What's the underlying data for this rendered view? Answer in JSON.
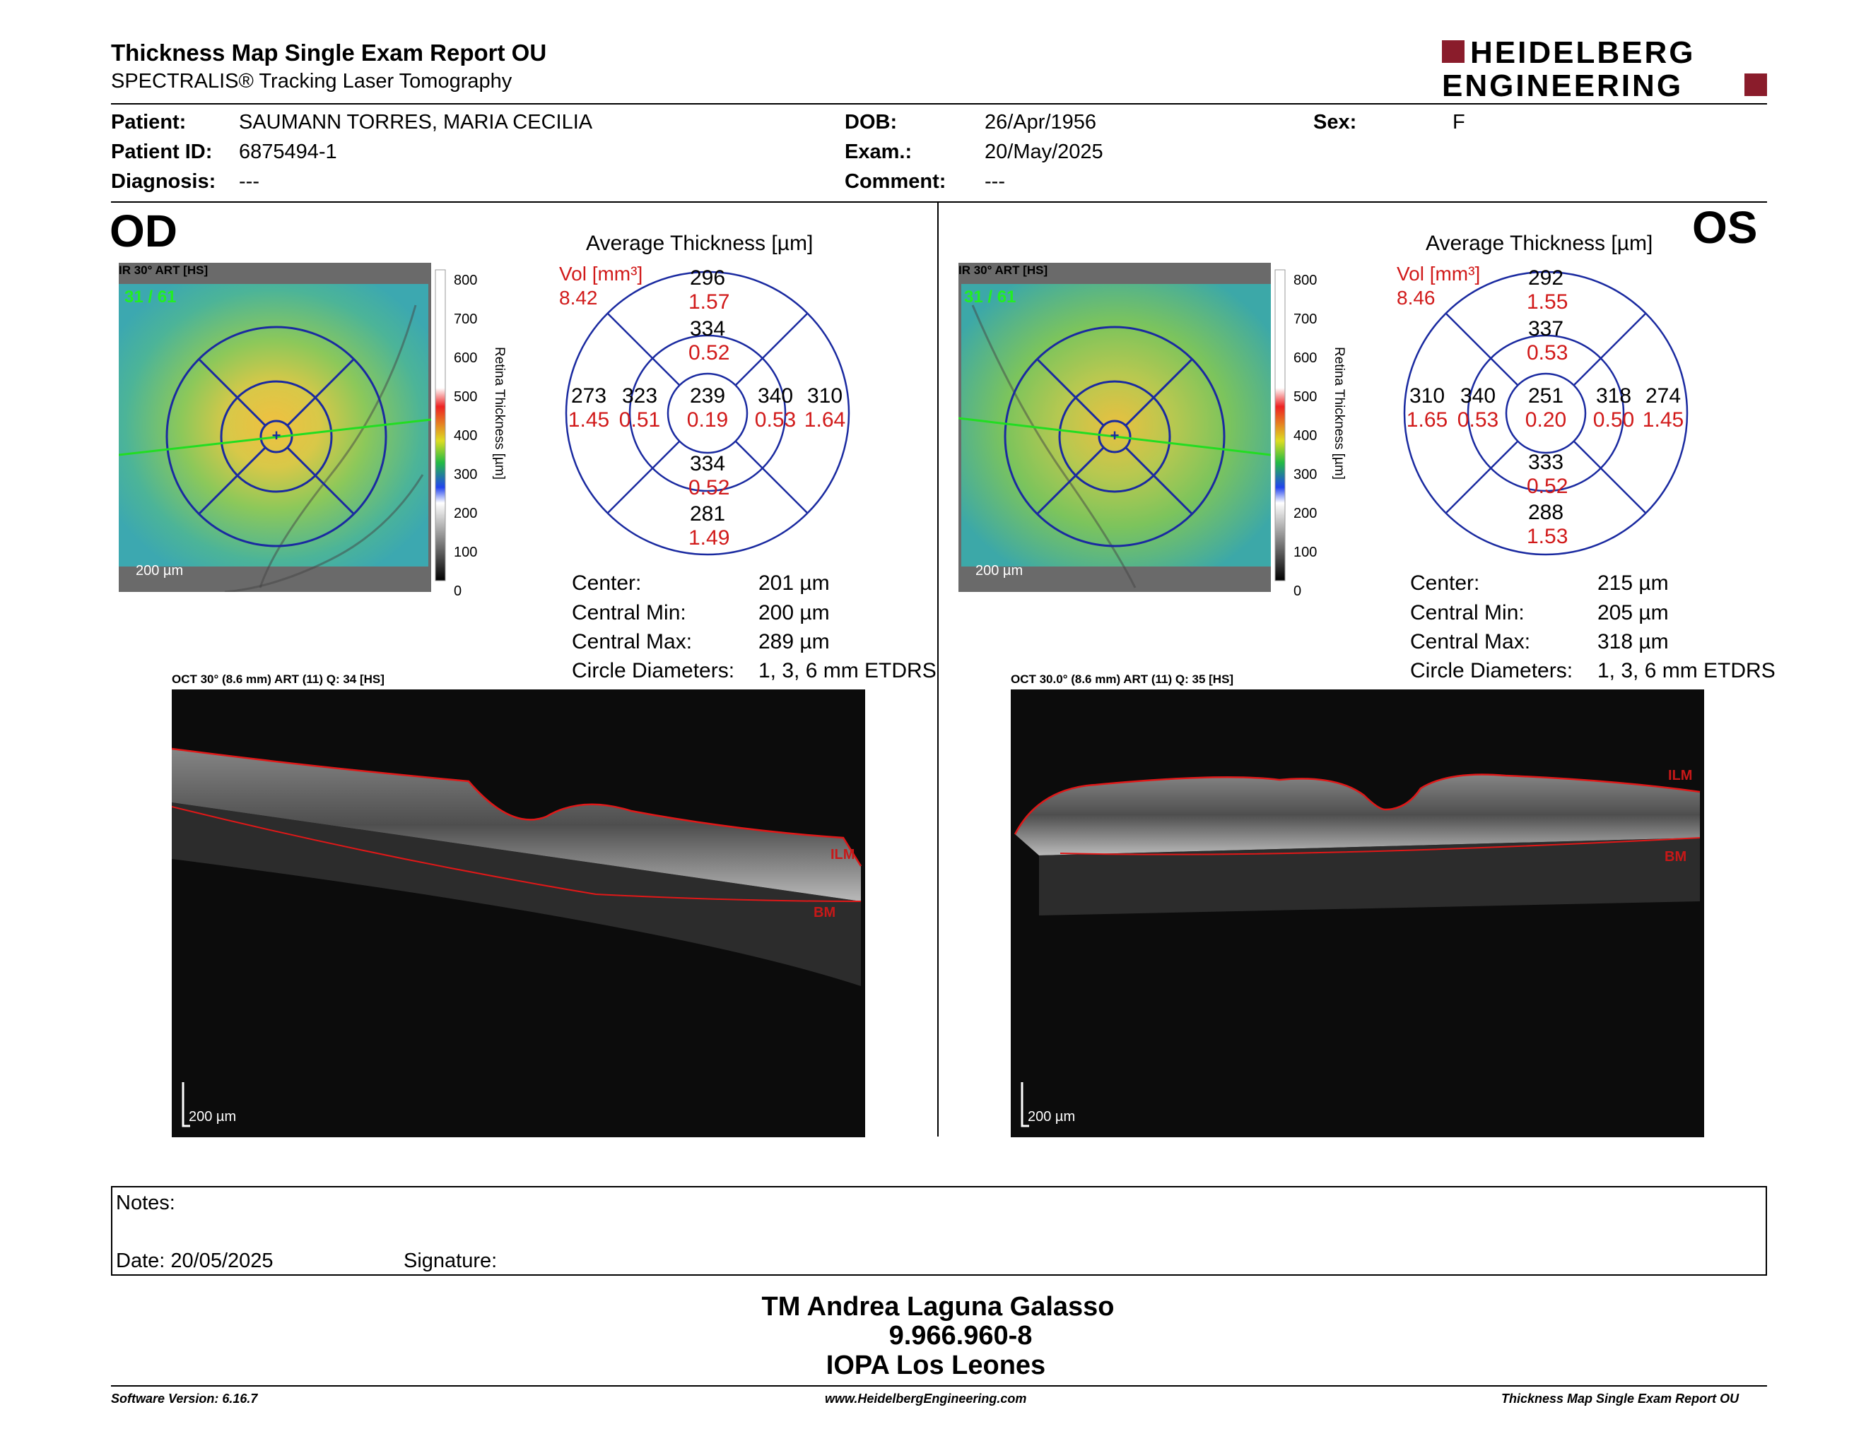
{
  "header": {
    "title": "Thickness Map Single Exam Report OU",
    "subtitle": "SPECTRALIS® Tracking Laser Tomography",
    "logo_line1": "HEIDELBERG",
    "logo_line2": "ENGINEERING",
    "logo_color": "#8a1c2b"
  },
  "patient": {
    "patient_label": "Patient:",
    "patient_value": "SAUMANN TORRES, MARIA CECILIA",
    "id_label": "Patient ID:",
    "id_value": "6875494-1",
    "diagnosis_label": "Diagnosis:",
    "diagnosis_value": "---",
    "dob_label": "DOB:",
    "dob_value": "26/Apr/1956",
    "exam_label": "Exam.:",
    "exam_value": "20/May/2025",
    "comment_label": "Comment:",
    "comment_value": "---",
    "sex_label": "Sex:",
    "sex_value": "F"
  },
  "od": {
    "eye": "OD",
    "ir_label": "IR 30° ART [HS]",
    "frame": "31 / 61",
    "scale_bar": "200 µm",
    "colorbar_ticks": [
      "800",
      "700",
      "600",
      "500",
      "400",
      "300",
      "200",
      "100",
      "0"
    ],
    "colorbar_title": "Retina  Thickness [µm]",
    "avg_title": "Average Thickness [µm]",
    "vol_label": "Vol [mm³]",
    "vol_value": "8.42",
    "etdrs": {
      "center_t": "239",
      "center_v": "0.19",
      "inner_sup_t": "334",
      "inner_sup_v": "0.52",
      "inner_inf_t": "334",
      "inner_inf_v": "0.52",
      "inner_left_t": "323",
      "inner_left_v": "0.51",
      "inner_right_t": "340",
      "inner_right_v": "0.53",
      "outer_sup_t": "296",
      "outer_sup_v": "1.57",
      "outer_inf_t": "281",
      "outer_inf_v": "1.49",
      "outer_left_t": "273",
      "outer_left_v": "1.45",
      "outer_right_t": "310",
      "outer_right_v": "1.64"
    },
    "stats": {
      "center_label": "Center:",
      "center_value": "201 µm",
      "min_label": "Central Min:",
      "min_value": "200 µm",
      "max_label": "Central Max:",
      "max_value": "289 µm",
      "diam_label": "Circle Diameters:",
      "diam_value": "1, 3, 6 mm ETDRS"
    },
    "oct_label": "OCT 30° (8.6 mm) ART (11) Q: 34 [HS]",
    "ilm": "ILM",
    "bm": "BM",
    "oct_scale": "200 µm"
  },
  "os": {
    "eye": "OS",
    "ir_label": "IR 30° ART [HS]",
    "frame": "31 / 61",
    "scale_bar": "200 µm",
    "colorbar_ticks": [
      "800",
      "700",
      "600",
      "500",
      "400",
      "300",
      "200",
      "100",
      "0"
    ],
    "colorbar_title": "Retina  Thickness [µm]",
    "avg_title": "Average Thickness [µm]",
    "vol_label": "Vol [mm³]",
    "vol_value": "8.46",
    "etdrs": {
      "center_t": "251",
      "center_v": "0.20",
      "inner_sup_t": "337",
      "inner_sup_v": "0.53",
      "inner_inf_t": "333",
      "inner_inf_v": "0.52",
      "inner_left_t": "340",
      "inner_left_v": "0.53",
      "inner_right_t": "318",
      "inner_right_v": "0.50",
      "outer_sup_t": "292",
      "outer_sup_v": "1.55",
      "outer_inf_t": "288",
      "outer_inf_v": "1.53",
      "outer_left_t": "310",
      "outer_left_v": "1.65",
      "outer_right_t": "274",
      "outer_right_v": "1.45"
    },
    "stats": {
      "center_label": "Center:",
      "center_value": "215 µm",
      "min_label": "Central Min:",
      "min_value": "205 µm",
      "max_label": "Central Max:",
      "max_value": "318 µm",
      "diam_label": "Circle Diameters:",
      "diam_value": "1, 3, 6 mm ETDRS"
    },
    "oct_label": "OCT 30.0° (8.6 mm) ART (11) Q: 35 [HS]",
    "ilm": "ILM",
    "bm": "BM",
    "oct_scale": "200 µm"
  },
  "notes": {
    "notes_label": "Notes:",
    "date_label": "Date: 20/05/2025",
    "signature_label": "Signature:"
  },
  "signature": {
    "name": "TM Andrea Laguna Galasso",
    "id": "9.966.960-8",
    "org": "IOPA Los Leones"
  },
  "footer": {
    "software": "Software Version: 6.16.7",
    "url": "www.HeidelbergEngineering.com",
    "report": "Thickness Map Single Exam Report OU"
  }
}
